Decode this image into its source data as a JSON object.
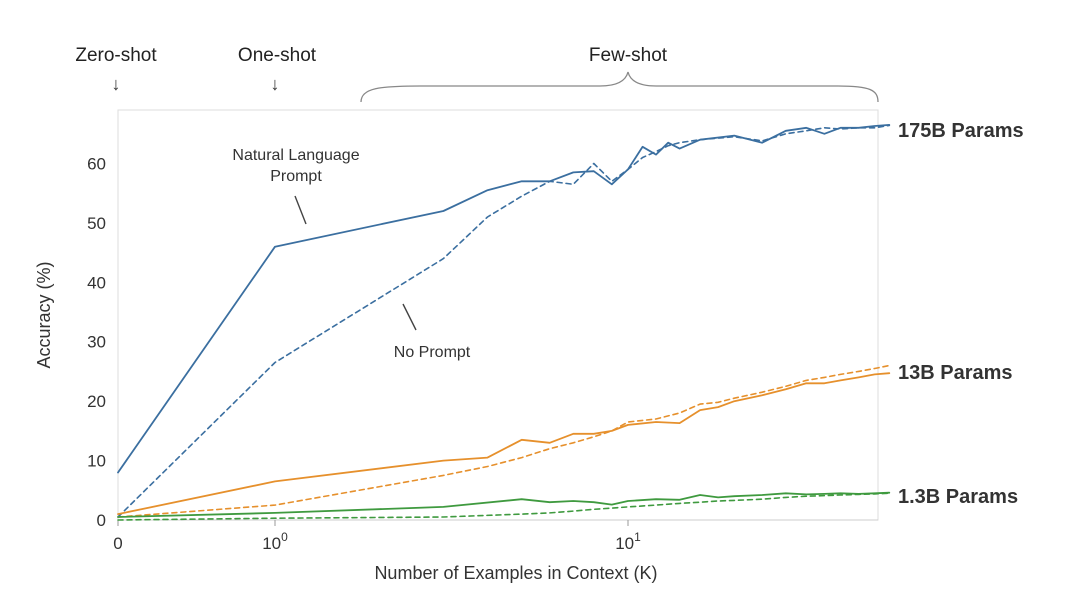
{
  "chart_data": {
    "type": "line",
    "xlabel": "Number of Examples in Context  (K)",
    "ylabel": "Accuracy (%)",
    "xscale": "log (0 placed at left edge)",
    "xlim": [
      0,
      55
    ],
    "ylim": [
      0,
      69
    ],
    "xticks": [
      {
        "value": 0,
        "base": "0",
        "exp": ""
      },
      {
        "value": 1,
        "base": "10",
        "exp": "0"
      },
      {
        "value": 10,
        "base": "10",
        "exp": "1"
      }
    ],
    "yticks": [
      0,
      10,
      20,
      30,
      40,
      50,
      60
    ],
    "grid": false,
    "shot_labels": [
      {
        "text": "Zero-shot",
        "x": 0
      },
      {
        "text": "One-shot",
        "x": 1
      },
      {
        "text": "Few-shot",
        "x_range": [
          1.8,
          55
        ]
      }
    ],
    "annotations": [
      {
        "text_lines": [
          "Natural Language",
          "Prompt"
        ],
        "target": "175B Params prompt"
      },
      {
        "text_lines": [
          "No Prompt"
        ],
        "target": "175B Params no prompt"
      }
    ],
    "series": [
      {
        "name": "175B Params",
        "variant": "prompt",
        "color": "#3b6fa0",
        "style": "solid",
        "x": [
          0,
          1,
          3,
          4,
          5,
          6,
          7,
          8,
          9,
          10,
          11,
          12,
          13,
          14,
          16,
          20,
          24,
          28,
          32,
          36,
          40,
          45,
          50,
          55
        ],
        "y": [
          8,
          46,
          52,
          55.5,
          57,
          57,
          58.5,
          58.7,
          56.5,
          59,
          62.8,
          61.5,
          63.5,
          62.5,
          64,
          64.7,
          63.5,
          65.5,
          66,
          65,
          66,
          66,
          66.3,
          66.5
        ]
      },
      {
        "name": "175B Params",
        "variant": "no prompt",
        "color": "#3b6fa0",
        "style": "dashed",
        "x": [
          0,
          1,
          3,
          4,
          5,
          6,
          7,
          8,
          9,
          10,
          11,
          12,
          13,
          14,
          16,
          20,
          24,
          28,
          32,
          36,
          40,
          45,
          50,
          55
        ],
        "y": [
          0.5,
          26.5,
          44,
          51,
          54.5,
          57,
          56.5,
          60,
          57,
          59,
          61,
          62,
          63,
          63.5,
          64,
          64.5,
          63.8,
          65,
          65.5,
          66,
          65.8,
          66,
          66,
          66.4
        ]
      },
      {
        "name": "13B Params",
        "variant": "prompt",
        "color": "#e6902c",
        "style": "solid",
        "x": [
          0,
          1,
          3,
          4,
          5,
          6,
          7,
          8,
          9,
          10,
          12,
          14,
          16,
          18,
          20,
          24,
          28,
          32,
          36,
          40,
          45,
          50,
          55
        ],
        "y": [
          1,
          6.5,
          10,
          10.5,
          13.5,
          13,
          14.5,
          14.5,
          15,
          16,
          16.5,
          16.3,
          18.5,
          19,
          20,
          21,
          22,
          23,
          23,
          23.5,
          24,
          24.5,
          24.7
        ]
      },
      {
        "name": "13B Params",
        "variant": "no prompt",
        "color": "#e6902c",
        "style": "dashed",
        "x": [
          0,
          1,
          3,
          4,
          5,
          6,
          7,
          8,
          9,
          10,
          12,
          14,
          16,
          18,
          20,
          24,
          28,
          32,
          36,
          40,
          45,
          50,
          55
        ],
        "y": [
          0.5,
          2.5,
          7.5,
          9,
          10.5,
          12,
          13,
          14,
          15,
          16.5,
          17,
          18,
          19.5,
          19.8,
          20.5,
          21.5,
          22.5,
          23.5,
          24,
          24.5,
          25,
          25.5,
          26
        ]
      },
      {
        "name": "1.3B Params",
        "variant": "prompt",
        "color": "#3f9a3f",
        "style": "solid",
        "x": [
          0,
          1,
          3,
          5,
          6,
          7,
          8,
          9,
          10,
          12,
          14,
          16,
          18,
          20,
          24,
          28,
          32,
          36,
          40,
          45,
          50,
          55
        ],
        "y": [
          0.5,
          1.2,
          2.2,
          3.5,
          3,
          3.2,
          3,
          2.6,
          3.2,
          3.5,
          3.4,
          4.2,
          3.8,
          4,
          4.2,
          4.5,
          4.3,
          4.4,
          4.5,
          4.4,
          4.5,
          4.6
        ]
      },
      {
        "name": "1.3B Params",
        "variant": "no prompt",
        "color": "#3f9a3f",
        "style": "dashed",
        "x": [
          0,
          1,
          3,
          5,
          6,
          7,
          8,
          9,
          10,
          12,
          14,
          16,
          18,
          20,
          24,
          28,
          32,
          36,
          40,
          45,
          50,
          55
        ],
        "y": [
          0,
          0.3,
          0.5,
          1,
          1.2,
          1.5,
          1.8,
          2,
          2.2,
          2.5,
          2.8,
          3,
          3.2,
          3.3,
          3.5,
          3.8,
          4,
          4.1,
          4.2,
          4.3,
          4.4,
          4.5
        ]
      }
    ],
    "series_labels": [
      {
        "text": "175B Params",
        "color": "#4a86b5"
      },
      {
        "text": "13B Params",
        "color": "#ef8a2a"
      },
      {
        "text": "1.3B Params",
        "color": "#2f9a3a"
      }
    ]
  }
}
